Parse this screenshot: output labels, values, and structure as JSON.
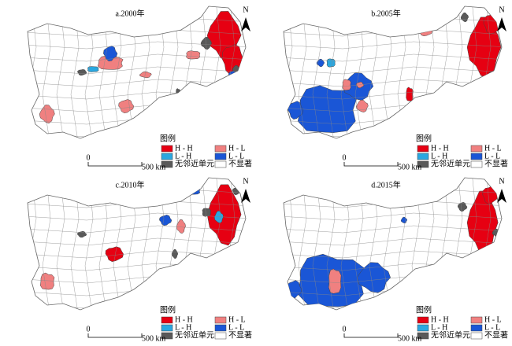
{
  "panels": [
    {
      "title": "a.2000年",
      "legend": {
        "title": "图例",
        "items": [
          "H - H",
          "H - L",
          "L - H",
          "L - L",
          "无邻近单元",
          "不显著"
        ]
      },
      "scale": [
        "0",
        "500 km"
      ],
      "north": "N"
    },
    {
      "title": "b.2005年",
      "legend": {
        "title": "图例",
        "items": [
          "H - H",
          "H - L",
          "L - H",
          "L - L",
          "无邻近单元",
          "不显著"
        ]
      },
      "scale": [
        "0",
        "500 km"
      ],
      "north": "N"
    },
    {
      "title": "c.2010年",
      "legend": {
        "title": "图例",
        "items": [
          "H - H",
          "H - L",
          "L - H",
          "L - L",
          "无邻近单元",
          "不显著"
        ]
      },
      "scale": [
        "0",
        "500 km"
      ],
      "north": "N"
    },
    {
      "title": "d.2015年",
      "legend": {
        "title": "图例",
        "items": [
          "H - H",
          "H - L",
          "L - H",
          "L - L",
          "无邻近单元",
          "不显著"
        ]
      },
      "scale": [
        "0",
        "500 km"
      ],
      "north": "N"
    }
  ]
}
